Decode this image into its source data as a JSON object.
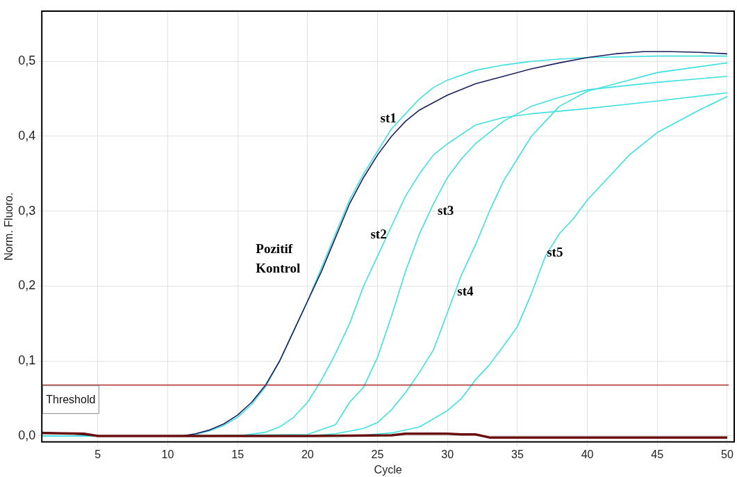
{
  "chart_data": {
    "type": "line",
    "xlabel": "Cycle",
    "ylabel": "Norm. Fluoro.",
    "xlim": [
      1,
      50.5
    ],
    "xticks": [
      5,
      10,
      15,
      20,
      25,
      30,
      35,
      40,
      45,
      50
    ],
    "ylim": [
      -0.008,
      0.567
    ],
    "yticks": [
      {
        "value": 0,
        "label": "0,0"
      },
      {
        "value": 0.1,
        "label": "0,1"
      },
      {
        "value": 0.2,
        "label": "0,2"
      },
      {
        "value": 0.3,
        "label": "0,3"
      },
      {
        "value": 0.4,
        "label": "0,4"
      },
      {
        "value": 0.5,
        "label": "0,5"
      }
    ],
    "grid": true,
    "legend": false,
    "marker": "none",
    "line_style": "solid",
    "ref_lines": [
      {
        "axis": "y",
        "value": 0.068,
        "label": "Threshold",
        "color": "#b03030"
      }
    ],
    "series": [
      {
        "name": "Pozitif Kontrol",
        "color": "#1a1f5e",
        "x": [
          1,
          3,
          5,
          8,
          11,
          12,
          13,
          14,
          15,
          16,
          17,
          18,
          19,
          20,
          21,
          22,
          23,
          24,
          25,
          26,
          27,
          28,
          29,
          30,
          32,
          34,
          36,
          38,
          40,
          42,
          44,
          46,
          48,
          50
        ],
        "values": [
          0.005,
          0.003,
          0,
          0,
          0,
          0.003,
          0.008,
          0.016,
          0.028,
          0.045,
          0.068,
          0.1,
          0.14,
          0.18,
          0.22,
          0.265,
          0.31,
          0.345,
          0.375,
          0.4,
          0.42,
          0.435,
          0.445,
          0.455,
          0.47,
          0.48,
          0.49,
          0.498,
          0.505,
          0.51,
          0.513,
          0.513,
          0.512,
          0.51
        ]
      },
      {
        "name": "st1",
        "color": "#40e0e0",
        "x": [
          1,
          5,
          8,
          11,
          12,
          13,
          14,
          15,
          16,
          17,
          18,
          19,
          20,
          21,
          22,
          23,
          24,
          25,
          26,
          27,
          28,
          29,
          30,
          32,
          34,
          36,
          38,
          40,
          45,
          50
        ],
        "values": [
          0,
          0,
          0,
          0,
          0.002,
          0.007,
          0.014,
          0.025,
          0.042,
          0.066,
          0.1,
          0.14,
          0.18,
          0.225,
          0.27,
          0.315,
          0.35,
          0.38,
          0.41,
          0.43,
          0.45,
          0.465,
          0.475,
          0.488,
          0.495,
          0.5,
          0.503,
          0.505,
          0.507,
          0.507
        ]
      },
      {
        "name": "st2",
        "color": "#40e0e0",
        "x": [
          1,
          10,
          15,
          17,
          18,
          19,
          20,
          21,
          22,
          23,
          24,
          25,
          26,
          27,
          28,
          29,
          30,
          32,
          34,
          36,
          40,
          45,
          50
        ],
        "values": [
          0,
          0,
          0,
          0.005,
          0.012,
          0.025,
          0.045,
          0.075,
          0.11,
          0.15,
          0.2,
          0.24,
          0.28,
          0.32,
          0.35,
          0.375,
          0.39,
          0.415,
          0.425,
          0.43,
          0.437,
          0.447,
          0.458
        ]
      },
      {
        "name": "st3",
        "color": "#40e0e0",
        "x": [
          1,
          10,
          20,
          22,
          23,
          24,
          25,
          26,
          27,
          28,
          29,
          30,
          31,
          32,
          34,
          36,
          38,
          40,
          45,
          50
        ],
        "values": [
          0,
          0,
          0.002,
          0.015,
          0.045,
          0.065,
          0.105,
          0.16,
          0.22,
          0.27,
          0.31,
          0.345,
          0.37,
          0.39,
          0.42,
          0.44,
          0.452,
          0.462,
          0.472,
          0.48
        ]
      },
      {
        "name": "st4",
        "color": "#40e0e0",
        "x": [
          1,
          10,
          20,
          22,
          24,
          25,
          26,
          27,
          28,
          29,
          30,
          31,
          32,
          33,
          34,
          35,
          36,
          37,
          38,
          40,
          42,
          45,
          50
        ],
        "values": [
          0,
          0,
          0,
          0.003,
          0.01,
          0.018,
          0.035,
          0.058,
          0.085,
          0.115,
          0.165,
          0.215,
          0.255,
          0.3,
          0.34,
          0.37,
          0.4,
          0.42,
          0.44,
          0.46,
          0.47,
          0.485,
          0.498
        ]
      },
      {
        "name": "st5",
        "color": "#40e0e0",
        "x": [
          1,
          10,
          20,
          24,
          26,
          28,
          30,
          31,
          32,
          33,
          34,
          35,
          36,
          37,
          38,
          39,
          40,
          41,
          42,
          43,
          44,
          45,
          46,
          47,
          48,
          50
        ],
        "values": [
          0,
          0,
          0,
          0.001,
          0.004,
          0.012,
          0.034,
          0.05,
          0.075,
          0.095,
          0.12,
          0.146,
          0.19,
          0.24,
          0.27,
          0.29,
          0.315,
          0.335,
          0.355,
          0.375,
          0.39,
          0.405,
          0.415,
          0.425,
          0.435,
          0.453
        ]
      },
      {
        "color": "#6a0f0f",
        "x": [
          1,
          4,
          5,
          10,
          20,
          26,
          27,
          30,
          31,
          32,
          33,
          40,
          50
        ],
        "values": [
          0.004,
          0.003,
          0,
          0,
          0,
          0.001,
          0.003,
          0.003,
          0.002,
          0.002,
          -0.002,
          -0.002,
          -0.002
        ]
      }
    ]
  }
}
